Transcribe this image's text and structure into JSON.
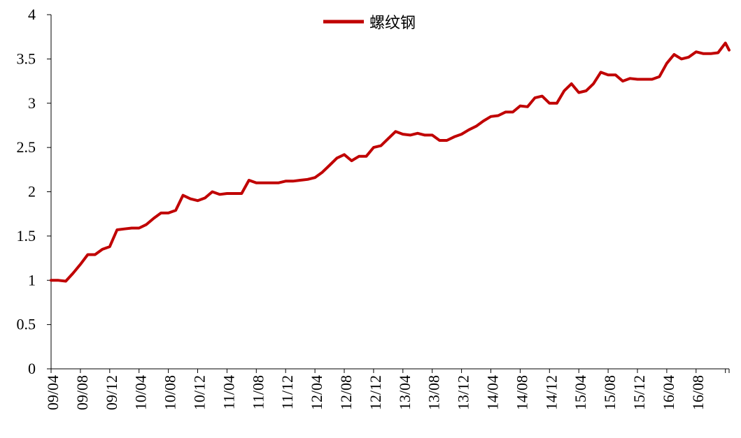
{
  "chart_data": {
    "type": "line",
    "title": "",
    "xlabel": "",
    "ylabel": "",
    "ylim": [
      0,
      4
    ],
    "y_ticks": [
      "0",
      "0.5",
      "1",
      "1.5",
      "2",
      "2.5",
      "3",
      "3.5",
      "4"
    ],
    "x_ticks": [
      "09/04",
      "09/08",
      "09/12",
      "10/04",
      "10/08",
      "10/12",
      "11/04",
      "11/08",
      "11/12",
      "12/04",
      "12/08",
      "12/12",
      "13/04",
      "13/08",
      "13/12",
      "14/04",
      "14/08",
      "14/12",
      "15/04",
      "15/08",
      "15/12",
      "16/04",
      "16/08"
    ],
    "grid": false,
    "legend": "top-center",
    "color": "#C00000",
    "series": [
      {
        "name": "螺纹钢",
        "points": [
          [
            "09/04",
            1.0
          ],
          [
            "09/05",
            1.0
          ],
          [
            "09/06",
            0.99
          ],
          [
            "09/07",
            1.08
          ],
          [
            "09/08",
            1.18
          ],
          [
            "09/09",
            1.29
          ],
          [
            "09/10",
            1.29
          ],
          [
            "09/11",
            1.35
          ],
          [
            "09/12",
            1.38
          ],
          [
            "10/01",
            1.57
          ],
          [
            "10/02",
            1.58
          ],
          [
            "10/03",
            1.59
          ],
          [
            "10/04",
            1.59
          ],
          [
            "10/05",
            1.63
          ],
          [
            "10/06",
            1.7
          ],
          [
            "10/07",
            1.76
          ],
          [
            "10/08",
            1.76
          ],
          [
            "10/09",
            1.79
          ],
          [
            "10/10",
            1.96
          ],
          [
            "10/11",
            1.92
          ],
          [
            "10/12",
            1.9
          ],
          [
            "11/01",
            1.93
          ],
          [
            "11/02",
            2.0
          ],
          [
            "11/03",
            1.97
          ],
          [
            "11/04",
            1.98
          ],
          [
            "11/05",
            1.98
          ],
          [
            "11/06",
            1.98
          ],
          [
            "11/07",
            2.13
          ],
          [
            "11/08",
            2.1
          ],
          [
            "11/09",
            2.1
          ],
          [
            "11/10",
            2.1
          ],
          [
            "11/11",
            2.1
          ],
          [
            "11/12",
            2.12
          ],
          [
            "12/01",
            2.12
          ],
          [
            "12/02",
            2.13
          ],
          [
            "12/03",
            2.14
          ],
          [
            "12/04",
            2.16
          ],
          [
            "12/05",
            2.22
          ],
          [
            "12/06",
            2.3
          ],
          [
            "12/07",
            2.38
          ],
          [
            "12/08",
            2.42
          ],
          [
            "12/09",
            2.35
          ],
          [
            "12/10",
            2.4
          ],
          [
            "12/11",
            2.4
          ],
          [
            "12/12",
            2.5
          ],
          [
            "13/01",
            2.52
          ],
          [
            "13/02",
            2.6
          ],
          [
            "13/03",
            2.68
          ],
          [
            "13/04",
            2.65
          ],
          [
            "13/05",
            2.64
          ],
          [
            "13/06",
            2.66
          ],
          [
            "13/07",
            2.64
          ],
          [
            "13/08",
            2.64
          ],
          [
            "13/09",
            2.58
          ],
          [
            "13/10",
            2.58
          ],
          [
            "13/11",
            2.62
          ],
          [
            "13/12",
            2.65
          ],
          [
            "14/01",
            2.7
          ],
          [
            "14/02",
            2.74
          ],
          [
            "14/03",
            2.8
          ],
          [
            "14/04",
            2.85
          ],
          [
            "14/05",
            2.86
          ],
          [
            "14/06",
            2.9
          ],
          [
            "14/07",
            2.9
          ],
          [
            "14/08",
            2.97
          ],
          [
            "14/09",
            2.96
          ],
          [
            "14/10",
            3.06
          ],
          [
            "14/11",
            3.08
          ],
          [
            "14/12",
            3.0
          ],
          [
            "15/01",
            3.0
          ],
          [
            "15/02",
            3.14
          ],
          [
            "15/03",
            3.22
          ],
          [
            "15/04",
            3.12
          ],
          [
            "15/05",
            3.14
          ],
          [
            "15/06",
            3.22
          ],
          [
            "15/07",
            3.35
          ],
          [
            "15/08",
            3.32
          ],
          [
            "15/09",
            3.32
          ],
          [
            "15/10",
            3.25
          ],
          [
            "15/11",
            3.28
          ],
          [
            "15/12",
            3.27
          ],
          [
            "16/01",
            3.27
          ],
          [
            "16/02",
            3.27
          ],
          [
            "16/03",
            3.3
          ],
          [
            "16/04",
            3.45
          ],
          [
            "16/05",
            3.55
          ],
          [
            "16/06",
            3.5
          ],
          [
            "16/07",
            3.52
          ],
          [
            "16/08",
            3.58
          ],
          [
            "16/09",
            3.56
          ],
          [
            "16/10",
            3.56
          ],
          [
            "16/11",
            3.57
          ],
          [
            "16/12",
            3.68
          ],
          [
            "16/12",
            3.6
          ]
        ]
      }
    ]
  }
}
